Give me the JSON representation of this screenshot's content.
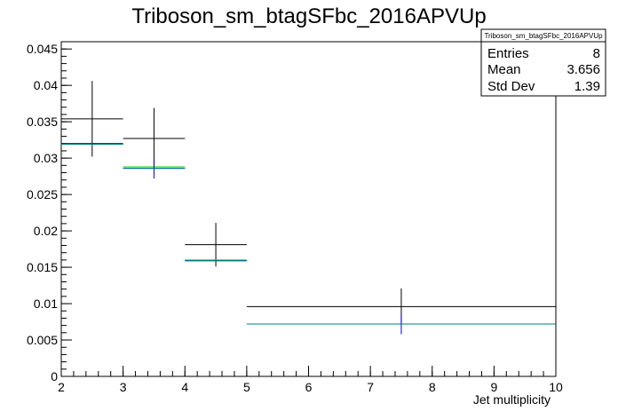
{
  "chart_data": {
    "type": "histogram",
    "title": "Triboson_sm_btagSFbc_2016APVUp",
    "xlabel": "Jet multiplicity",
    "ylabel": "",
    "xlim": [
      2,
      10
    ],
    "ylim": [
      0,
      0.046
    ],
    "x_ticks": [
      "2",
      "3",
      "4",
      "5",
      "6",
      "7",
      "8",
      "9",
      "10"
    ],
    "y_ticks": [
      "0",
      "0.005",
      "0.01",
      "0.015",
      "0.02",
      "0.025",
      "0.03",
      "0.035",
      "0.04",
      "0.045"
    ],
    "y_tick_values": [
      0,
      0.005,
      0.01,
      0.015,
      0.02,
      0.025,
      0.03,
      0.035,
      0.04,
      0.045
    ],
    "grid": false,
    "bins": [
      {
        "low": 2,
        "high": 3,
        "center": 2.5
      },
      {
        "low": 3,
        "high": 4,
        "center": 3.5
      },
      {
        "low": 4,
        "high": 5,
        "center": 4.5
      },
      {
        "low": 5,
        "high": 10,
        "center": 7.5
      }
    ],
    "series": [
      {
        "color": "#000000",
        "style": "errorbar",
        "values": [
          0.0354,
          0.0327,
          0.0181,
          0.0096
        ],
        "errors": [
          0.0052,
          0.0042,
          0.003,
          0.0025
        ]
      },
      {
        "color": "#00cc00",
        "style": "step",
        "values": [
          0.032,
          0.0288,
          0.016,
          0.0072
        ]
      },
      {
        "color": "#0000cc",
        "style": "step",
        "values": [
          0.032,
          0.0286,
          0.0159,
          0.0072
        ],
        "errors": [
          0,
          0.0014,
          0,
          0.0014
        ]
      },
      {
        "color": "#008080",
        "style": "step",
        "values": [
          0.0319,
          0.0286,
          0.0159,
          0.0072
        ]
      }
    ]
  },
  "stats_box": {
    "title": "Triboson_sm_btagSFbc_2016APVUp",
    "rows": [
      {
        "label": "Entries",
        "value": "8"
      },
      {
        "label": "Mean",
        "value": "3.656"
      },
      {
        "label": "Std Dev",
        "value": "1.39"
      }
    ]
  }
}
